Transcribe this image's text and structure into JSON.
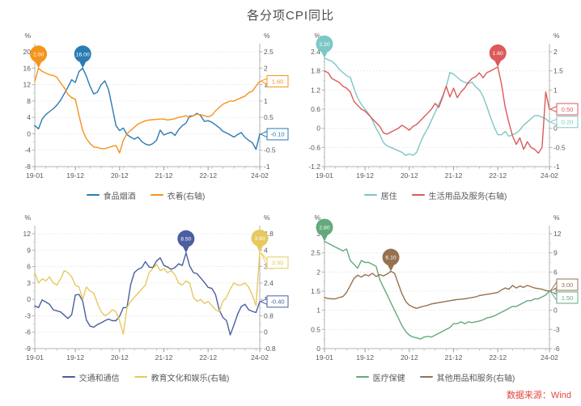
{
  "title": "各分项CPI同比",
  "source": "数据来源：Wind",
  "chart_data": [
    {
      "type": "line",
      "dual_axis": true,
      "x_start": "19-01",
      "x_end": "24-02",
      "n_points": 62,
      "x_tick_labels": [
        "19-01",
        "19-12",
        "20-12",
        "21-12",
        "22-12",
        "24-02"
      ],
      "x_tick_indices": [
        0,
        11,
        23,
        35,
        47,
        61
      ],
      "left_axis": {
        "unit": "%",
        "ticks": [
          20,
          16,
          12,
          8,
          4,
          0,
          -4,
          -8
        ]
      },
      "right_axis": {
        "unit": "%",
        "ticks": [
          2.5,
          2,
          1.5,
          1,
          0.5,
          0,
          -0.5,
          -1
        ]
      },
      "series": [
        {
          "name": "食品烟酒",
          "axis": "left",
          "color": "#2b7bb4",
          "marker": {
            "index": 13,
            "label": "16.00"
          },
          "end_label": "-0.10",
          "values": [
            2.0,
            1.2,
            3.6,
            4.7,
            5.4,
            6.1,
            7.0,
            8.2,
            9.8,
            11.4,
            13.2,
            12.5,
            15.2,
            16.0,
            14.0,
            11.5,
            9.7,
            10.2,
            12.0,
            12.9,
            10.8,
            6.5,
            2.0,
            0.8,
            1.4,
            -0.2,
            -0.8,
            -1.3,
            -0.8,
            -1.9,
            -2.5,
            -2.8,
            -2.4,
            -1.6,
            0.9,
            -0.3,
            0.1,
            0.4,
            -0.4,
            1.0,
            2.0,
            2.6,
            4.3,
            4.4,
            5.0,
            4.4,
            3.0,
            3.2,
            2.8,
            2.2,
            1.5,
            0.6,
            0.2,
            -0.3,
            -0.8,
            -0.2,
            0.3,
            -0.9,
            -1.6,
            -2.2,
            -3.8,
            -0.1
          ]
        },
        {
          "name": "衣着(右轴)",
          "axis": "right",
          "color": "#f5941d",
          "marker": {
            "index": 1,
            "label": "2.00"
          },
          "end_label": "1.60",
          "values": [
            1.6,
            2.0,
            1.9,
            1.85,
            1.8,
            1.78,
            1.72,
            1.55,
            1.4,
            1.2,
            1.1,
            1.05,
            0.55,
            0.1,
            -0.15,
            -0.3,
            -0.4,
            -0.42,
            -0.45,
            -0.45,
            -0.42,
            -0.38,
            -0.36,
            -0.58,
            -0.2,
            0.0,
            0.1,
            0.2,
            0.3,
            0.35,
            0.4,
            0.42,
            0.43,
            0.44,
            0.45,
            0.45,
            0.42,
            0.44,
            0.46,
            0.5,
            0.52,
            0.55,
            0.5,
            0.55,
            0.6,
            0.58,
            0.55,
            0.52,
            0.56,
            0.7,
            0.8,
            0.9,
            0.95,
            1.0,
            1.0,
            1.05,
            1.1,
            1.15,
            1.25,
            1.3,
            1.45,
            1.6
          ]
        }
      ]
    },
    {
      "type": "line",
      "dual_axis": true,
      "x_start": "19-01",
      "x_end": "24-02",
      "n_points": 62,
      "x_tick_labels": [
        "19-01",
        "19-12",
        "20-12",
        "21-12",
        "22-12",
        "24-02"
      ],
      "x_tick_indices": [
        0,
        11,
        23,
        35,
        47,
        61
      ],
      "left_axis": {
        "unit": "%",
        "ticks": [
          2.4,
          1.8,
          1.2,
          0.6,
          0,
          -0.6,
          -1.2
        ]
      },
      "right_axis": {
        "unit": "%",
        "ticks": [
          2,
          1.5,
          1,
          0.5,
          0,
          -0.5,
          -1
        ]
      },
      "series": [
        {
          "name": "居住",
          "axis": "left",
          "color": "#7cc8c4",
          "marker": {
            "index": 0,
            "label": "2.20"
          },
          "end_label": "0.20",
          "values": [
            2.2,
            2.15,
            2.1,
            2.0,
            1.85,
            1.75,
            1.65,
            1.6,
            1.25,
            0.95,
            0.75,
            0.6,
            0.45,
            0.25,
            0.0,
            -0.2,
            -0.45,
            -0.55,
            -0.6,
            -0.65,
            -0.7,
            -0.75,
            -0.85,
            -0.8,
            -0.85,
            -0.75,
            -0.45,
            -0.2,
            0.0,
            0.25,
            0.5,
            0.75,
            1.0,
            1.3,
            1.75,
            1.7,
            1.6,
            1.5,
            1.45,
            1.4,
            1.45,
            1.3,
            1.2,
            1.0,
            0.7,
            0.35,
            0.05,
            -0.2,
            -0.2,
            -0.1,
            -0.25,
            -0.2,
            -0.15,
            -0.05,
            0.1,
            0.2,
            0.3,
            0.4,
            0.4,
            0.35,
            0.3,
            0.2
          ]
        },
        {
          "name": "生活用品及服务(右轴)",
          "axis": "right",
          "color": "#db5a5a",
          "marker": {
            "index": 47,
            "label": "1.60"
          },
          "end_label": "0.50",
          "values": [
            1.5,
            1.45,
            1.3,
            1.25,
            1.2,
            1.1,
            1.05,
            0.95,
            0.7,
            0.6,
            0.5,
            0.45,
            0.35,
            0.25,
            0.15,
            0.05,
            -0.12,
            -0.15,
            -0.1,
            -0.05,
            0.0,
            0.08,
            0.02,
            -0.05,
            0.05,
            0.1,
            0.2,
            0.3,
            0.4,
            0.5,
            0.65,
            0.55,
            0.8,
            1.1,
            0.82,
            1.05,
            0.8,
            0.95,
            1.05,
            1.2,
            1.3,
            1.35,
            1.45,
            1.32,
            1.45,
            1.5,
            1.55,
            1.6,
            1.15,
            0.55,
            0.15,
            -0.2,
            -0.42,
            -0.25,
            -0.55,
            -0.35,
            -0.5,
            -0.55,
            -0.65,
            -0.5,
            0.95,
            0.5
          ]
        }
      ]
    },
    {
      "type": "line",
      "dual_axis": true,
      "x_start": "19-01",
      "x_end": "24-02",
      "n_points": 62,
      "x_tick_labels": [
        "19-01",
        "19-12",
        "20-12",
        "21-12",
        "22-12",
        "24-02"
      ],
      "x_tick_indices": [
        0,
        11,
        23,
        35,
        47,
        61
      ],
      "left_axis": {
        "unit": "%",
        "ticks": [
          12,
          9,
          6,
          3,
          0,
          -3,
          -6,
          -9
        ]
      },
      "right_axis": {
        "unit": "%",
        "ticks": [
          4.8,
          4,
          3.2,
          2.4,
          1.6,
          0.8,
          0,
          -0.8
        ]
      },
      "series": [
        {
          "name": "交通和通信",
          "axis": "left",
          "color": "#4b5ea0",
          "marker": {
            "index": 41,
            "label": "8.50"
          },
          "end_label": "-0.40",
          "values": [
            -1.2,
            -1.5,
            -0.1,
            -0.5,
            -0.9,
            -1.9,
            -2.1,
            -2.3,
            -2.9,
            -3.5,
            -2.8,
            0.8,
            0.9,
            -0.3,
            -3.8,
            -4.9,
            -5.1,
            -4.6,
            -4.3,
            -3.9,
            -3.6,
            -3.9,
            -3.9,
            -3.1,
            -1.5,
            -1.5,
            2.7,
            4.9,
            5.5,
            5.8,
            6.9,
            5.9,
            5.8,
            7.0,
            7.6,
            6.2,
            5.9,
            5.5,
            5.8,
            6.5,
            6.2,
            8.5,
            6.1,
            4.9,
            4.7,
            3.9,
            3.1,
            2.2,
            2.0,
            0.9,
            -1.9,
            -3.3,
            -3.9,
            -6.5,
            -4.7,
            -2.7,
            -1.3,
            -0.9,
            -1.9,
            -2.2,
            -2.4,
            -0.4
          ]
        },
        {
          "name": "教育文化和娱乐(右轴)",
          "axis": "right",
          "color": "#e7c95f",
          "marker": {
            "index": 61,
            "label": "3.90"
          },
          "end_label": "3.90",
          "values": [
            2.9,
            2.4,
            2.6,
            2.5,
            2.7,
            2.4,
            2.3,
            2.6,
            3.0,
            2.9,
            2.7,
            2.3,
            2.2,
            1.6,
            2.2,
            2.0,
            1.9,
            1.4,
            1.0,
            0.8,
            0.9,
            1.1,
            1.0,
            0.55,
            -0.1,
            1.2,
            1.5,
            1.7,
            1.9,
            2.1,
            2.3,
            2.9,
            3.1,
            3.3,
            3.0,
            3.1,
            2.9,
            3.0,
            2.8,
            2.4,
            2.3,
            2.5,
            2.4,
            1.7,
            1.5,
            1.6,
            1.4,
            1.5,
            1.3,
            1.1,
            1.0,
            1.5,
            1.7,
            2.1,
            2.4,
            2.3,
            2.3,
            2.4,
            2.2,
            1.8,
            1.3,
            3.9
          ]
        }
      ]
    },
    {
      "type": "line",
      "dual_axis": true,
      "x_start": "19-01",
      "x_end": "24-02",
      "n_points": 62,
      "x_tick_labels": [
        "19-01",
        "19-12",
        "20-12",
        "21-12",
        "22-12",
        "24-02"
      ],
      "x_tick_indices": [
        0,
        11,
        23,
        35,
        47,
        61
      ],
      "left_axis": {
        "unit": "%",
        "ticks": [
          3,
          2.5,
          2,
          1.5,
          1,
          0.5,
          0
        ]
      },
      "right_axis": {
        "unit": "%",
        "ticks": [
          12,
          9,
          6,
          3,
          0,
          -3,
          -6
        ]
      },
      "series": [
        {
          "name": "医疗保健",
          "axis": "left",
          "color": "#63a97c",
          "marker": {
            "index": 0,
            "label": "2.80"
          },
          "end_label": "1.50",
          "values": [
            2.8,
            2.75,
            2.7,
            2.65,
            2.6,
            2.55,
            2.6,
            2.3,
            2.2,
            2.1,
            2.3,
            2.25,
            2.25,
            2.2,
            2.15,
            1.8,
            1.6,
            1.4,
            1.2,
            1.0,
            0.8,
            0.6,
            0.45,
            0.35,
            0.3,
            0.28,
            0.25,
            0.3,
            0.32,
            0.3,
            0.35,
            0.4,
            0.45,
            0.5,
            0.55,
            0.65,
            0.65,
            0.7,
            0.65,
            0.7,
            0.68,
            0.7,
            0.72,
            0.75,
            0.8,
            0.82,
            0.85,
            0.9,
            0.95,
            1.0,
            1.05,
            1.1,
            1.1,
            1.15,
            1.2,
            1.25,
            1.25,
            1.3,
            1.3,
            1.35,
            1.4,
            1.5
          ]
        },
        {
          "name": "其他用品和服务(右轴)",
          "axis": "right",
          "color": "#97714f",
          "marker": {
            "index": 18,
            "label": "6.10"
          },
          "end_label": "3.00",
          "values": [
            2.0,
            1.85,
            1.8,
            1.8,
            2.0,
            2.15,
            2.8,
            3.9,
            5.0,
            5.5,
            5.2,
            5.6,
            5.4,
            5.8,
            5.3,
            5.6,
            5.4,
            5.7,
            6.1,
            5.8,
            4.2,
            2.6,
            1.4,
            0.8,
            0.5,
            0.3,
            0.5,
            0.65,
            0.8,
            1.0,
            1.1,
            1.2,
            1.3,
            1.4,
            1.5,
            1.6,
            1.7,
            1.75,
            1.8,
            1.9,
            2.0,
            2.1,
            2.3,
            2.4,
            2.5,
            2.6,
            2.7,
            2.8,
            3.2,
            3.5,
            3.3,
            3.9,
            3.5,
            3.8,
            3.6,
            3.9,
            3.7,
            3.5,
            3.4,
            3.3,
            3.1,
            3.0
          ]
        }
      ]
    }
  ]
}
